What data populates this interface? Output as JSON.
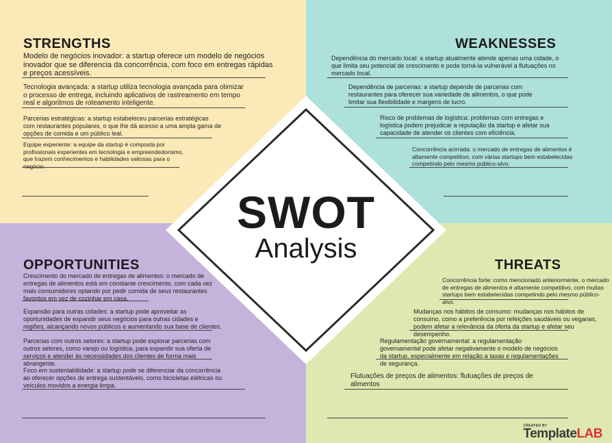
{
  "strengths": {
    "title": "STRENGTHS",
    "items": [
      "Modelo de negócios inovador: a startup oferece um modelo de negócios inovador que se diferencia da concorrência, com foco em entregas rápidas e preços acessíveis.",
      "Tecnologia avançada: a startup utiliza tecnologia avançada para otimizar o processo de entrega, incluindo aplicativos de rastreamento em tempo real e algoritmos de roteamento inteligente.",
      "Parcerias estratégicas: a startup estabeleceu parcerias estratégicas com restaurantes populares, o que lhe dá acesso a uma ampla gama de opções de comida e um público leal.",
      "Equipe experiente: a equipe da startup é composta por profissionais experientes em tecnologia e empreendedorismo, que trazem conhecimentos e habilidades valiosas para o negócio."
    ]
  },
  "weaknesses": {
    "title": "WEAKNESSES",
    "items": [
      "Dependência do mercado local: a startup atualmente atende apenas uma cidade, o que limita seu potencial de crescimento e pode torná-la vulnerável a flutuações no mercado local.",
      "Dependência de parcerias: a startup depende de parcerias com restaurantes para oferecer sua variedade de alimentos, o que pode limitar sua flexibilidade e margens de lucro.",
      "Risco de problemas de logística: problemas com entregas e logística podem prejudicar a reputação da startup e afetar sua capacidade de atender os clientes com eficiência.",
      "Concorrência acirrada: o mercado de entregas de alimentos é altamente competitivo, com várias startups bem estabelecidas competindo pelo mesmo público-alvo."
    ]
  },
  "opportunities": {
    "title": "OPPORTUNITIES",
    "items": [
      "Crescimento do mercado de entregas de alimentos: o mercado de entregas de alimentos está em constante crescimento, com cada vez mais consumidores optando por pedir comida de seus restaurantes favoritos em vez de cozinhar em casa.",
      "Expansão para outras cidades: a startup pode aproveitar as oportunidades de expandir seus negócios para outras cidades e regiões, alcançando novos públicos e aumentando sua base de clientes.",
      "Parcerias com outros setores: a startup pode explorar parcerias com outros setores, como varejo ou logística, para expandir sua oferta de serviços e atender às necessidades dos clientes de forma mais abrangente.",
      "Foco em sustentabilidade: a startup pode se diferenciar da concorrência ao oferecer opções de entrega sustentáveis, como bicicletas elétricas ou veículos movidos a energia limpa."
    ]
  },
  "threats": {
    "title": "THREATS",
    "items": [
      "Concorrência forte: como mencionado anteriormente, o mercado de entregas de alimentos é altamente competitivo, com muitas startups bem estabelecidas competindo pelo mesmo público-alvo.",
      "Mudanças nos hábitos de consumo: mudanças nos hábitos de consumo, como a preferência por refeições saudáveis ou veganas, podem afetar a relevância da oferta da startup e afetar seu desempenho.",
      "Regulamentação governamental: a regulamentação governamental pode afetar negativamente o modelo de negócios da startup, especialmente em relação a taxas e regulamentações de segurança.",
      "Flutuações de preços de alimentos: flutuações de preços de alimentos"
    ]
  },
  "center": {
    "title": "SWOT",
    "subtitle": "Analysis"
  },
  "logo": {
    "created_by": "CREATED BY",
    "template": "Template",
    "lab": "LAB"
  },
  "colors": {
    "strengths_bg": "#fbe9b7",
    "weaknesses_bg": "#aee0dc",
    "opportunities_bg": "#c6b3dc",
    "threats_bg": "#dfe8b0",
    "logo_accent": "#e0312f"
  }
}
